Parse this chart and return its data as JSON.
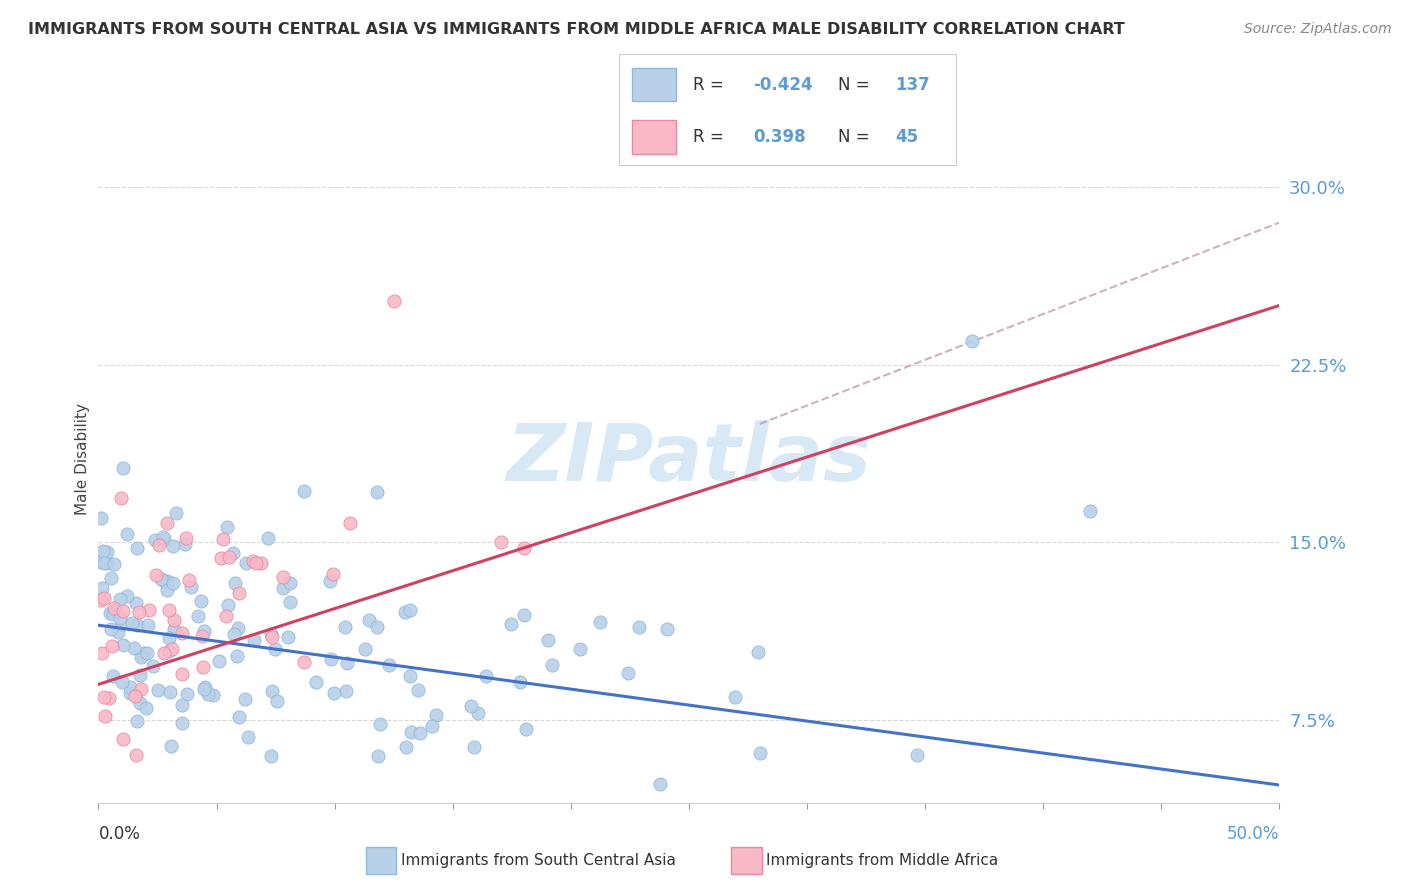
{
  "title": "IMMIGRANTS FROM SOUTH CENTRAL ASIA VS IMMIGRANTS FROM MIDDLE AFRICA MALE DISABILITY CORRELATION CHART",
  "source": "Source: ZipAtlas.com",
  "ylabel": "Male Disability",
  "yticks": [
    0.075,
    0.15,
    0.225,
    0.3
  ],
  "ytick_labels": [
    "7.5%",
    "15.0%",
    "22.5%",
    "30.0%"
  ],
  "xlim": [
    0.0,
    0.5
  ],
  "ylim": [
    0.04,
    0.33
  ],
  "series_blue": {
    "label": "Immigrants from South Central Asia",
    "color": "#b8d0e8",
    "edge_color": "#90b8d8",
    "R": -0.424,
    "N": 137,
    "line_color": "#4472c4",
    "trend_intercept": 0.115,
    "trend_slope": -0.135
  },
  "series_pink": {
    "label": "Immigrants from Middle Africa",
    "color": "#f8b8c8",
    "edge_color": "#e888a0",
    "R": 0.398,
    "N": 45,
    "line_color": "#d04060",
    "trend_intercept": 0.09,
    "trend_slope": 0.32
  },
  "dashed_line": {
    "color": "#c0a0a8",
    "x_start": 0.28,
    "x_end": 0.5,
    "y_start": 0.2,
    "y_end": 0.285
  },
  "watermark": "ZIPatlas",
  "watermark_color": "#c8dff0",
  "background_color": "#ffffff",
  "grid_color": "#d8d8d8"
}
